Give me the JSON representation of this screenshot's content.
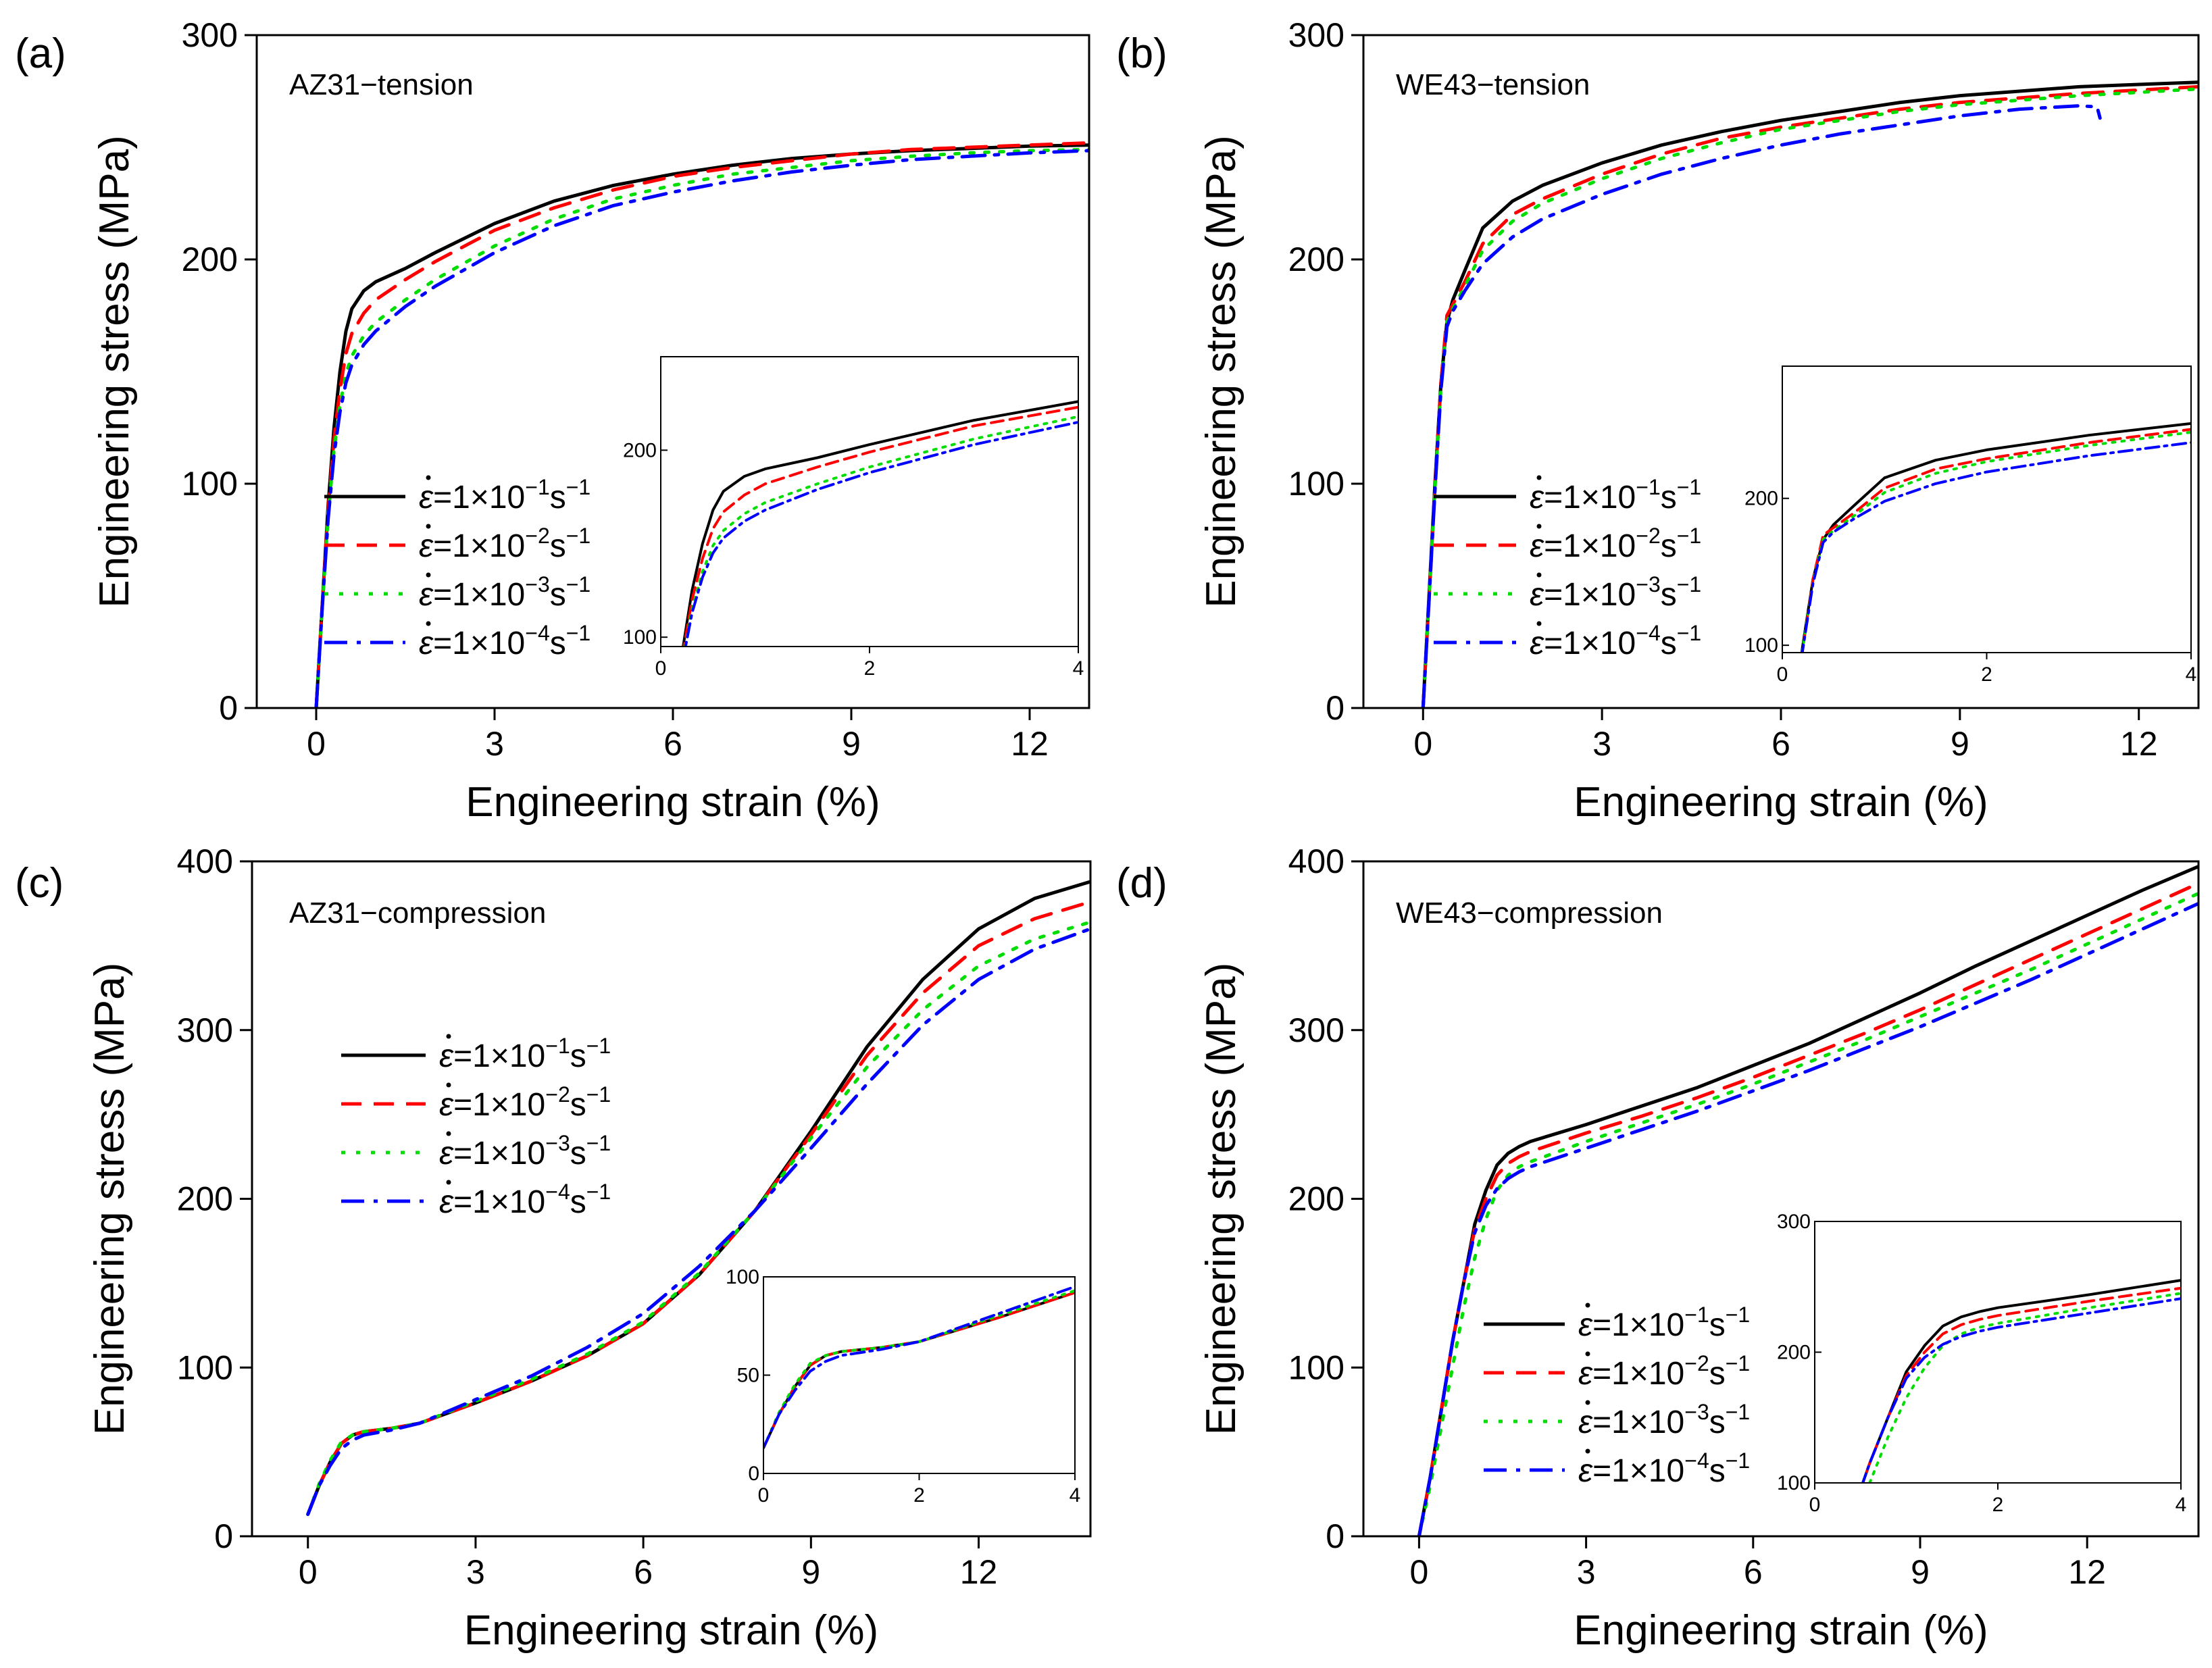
{
  "colors": {
    "s1": "#000000",
    "s2": "#ff0000",
    "s3": "#00dd00",
    "s4": "#0000ff"
  },
  "legend_entries": [
    {
      "mantissa": "1",
      "exponent": "−1",
      "unit": "s",
      "unit_exp": "−1"
    },
    {
      "mantissa": "1",
      "exponent": "−2",
      "unit": "s",
      "unit_exp": "−1"
    },
    {
      "mantissa": "1",
      "exponent": "−3",
      "unit": "s",
      "unit_exp": "−1"
    },
    {
      "mantissa": "1",
      "exponent": "−4",
      "unit": "s",
      "unit_exp": "−1"
    }
  ],
  "legend_symbol": "ε",
  "legend_times": "=1×10",
  "chart_data": [
    {
      "type": "line",
      "panel": "(a)",
      "title": "AZ31−tension",
      "xlabel": "Engineering strain (%)",
      "ylabel": "Engineering stress (MPa)",
      "xlim": [
        -1,
        13
      ],
      "ylim": [
        0,
        300
      ],
      "xticks": [
        0,
        3,
        6,
        9,
        12
      ],
      "yticks": [
        0,
        100,
        200,
        300
      ],
      "series": [
        {
          "name": "1×10⁻¹ s⁻¹",
          "x": [
            0,
            0.1,
            0.2,
            0.3,
            0.4,
            0.5,
            0.6,
            0.8,
            1.0,
            1.5,
            2,
            3,
            4,
            5,
            6,
            7,
            8,
            9,
            10,
            11,
            12,
            13
          ],
          "y": [
            0,
            45,
            90,
            125,
            150,
            168,
            178,
            186,
            190,
            196,
            203,
            216,
            226,
            233,
            238,
            242,
            245,
            247,
            248.5,
            249.5,
            250.5,
            251
          ]
        },
        {
          "name": "1×10⁻² s⁻¹",
          "x": [
            0,
            0.1,
            0.2,
            0.3,
            0.4,
            0.5,
            0.6,
            0.8,
            1.0,
            1.5,
            2,
            3,
            4,
            5,
            6,
            7,
            8,
            9,
            10,
            11,
            12,
            13
          ],
          "y": [
            0,
            45,
            88,
            120,
            142,
            158,
            167,
            176,
            182,
            191,
            199,
            213,
            223,
            231,
            237,
            241,
            244,
            247,
            249,
            250,
            251,
            252
          ]
        },
        {
          "name": "1×10⁻³ s⁻¹",
          "x": [
            0,
            0.1,
            0.2,
            0.3,
            0.4,
            0.5,
            0.6,
            0.8,
            1.0,
            1.5,
            2,
            3,
            4,
            5,
            6,
            7,
            8,
            9,
            10,
            11,
            12,
            13
          ],
          "y": [
            0,
            44,
            85,
            115,
            135,
            149,
            157,
            166,
            172,
            182,
            191,
            206,
            218,
            227,
            233,
            238,
            241,
            244,
            246,
            247.5,
            248.5,
            249
          ]
        },
        {
          "name": "1×10⁻⁴ s⁻¹",
          "x": [
            0,
            0.1,
            0.2,
            0.3,
            0.4,
            0.5,
            0.6,
            0.8,
            1.0,
            1.5,
            2,
            3,
            4,
            5,
            6,
            7,
            8,
            9,
            10,
            11,
            12,
            13
          ],
          "y": [
            0,
            44,
            84,
            113,
            132,
            145,
            153,
            162,
            168,
            179,
            188,
            203,
            215,
            224,
            230,
            235,
            239,
            242,
            244.5,
            246,
            247.5,
            248.5
          ]
        }
      ],
      "inset": {
        "xlim": [
          0,
          4
        ],
        "ylim": [
          95,
          250
        ],
        "xticks": [
          0,
          2,
          4
        ],
        "yticks": [
          100,
          200
        ]
      }
    },
    {
      "type": "line",
      "panel": "(b)",
      "title": "WE43−tension",
      "xlabel": "Engineering strain (%)",
      "ylabel": "Engineering stress (MPa)",
      "xlim": [
        -1,
        13
      ],
      "ylim": [
        0,
        300
      ],
      "xticks": [
        0,
        3,
        6,
        9,
        12
      ],
      "yticks": [
        0,
        100,
        200,
        300
      ],
      "series": [
        {
          "name": "1×10⁻¹ s⁻¹",
          "x": [
            0,
            0.1,
            0.2,
            0.3,
            0.4,
            0.5,
            0.7,
            1.0,
            1.5,
            2,
            3,
            4,
            5,
            6,
            7,
            8,
            9,
            10,
            11,
            12,
            13
          ],
          "y": [
            0,
            50,
            100,
            145,
            172,
            182,
            195,
            214,
            226,
            233,
            243,
            251,
            257,
            262,
            266,
            270,
            273,
            275,
            277,
            278,
            279
          ]
        },
        {
          "name": "1×10⁻² s⁻¹",
          "x": [
            0,
            0.1,
            0.2,
            0.3,
            0.4,
            0.5,
            0.7,
            1.0,
            1.5,
            2,
            3,
            4,
            5,
            6,
            7,
            8,
            9,
            10,
            11,
            12,
            13
          ],
          "y": [
            0,
            48,
            98,
            145,
            175,
            180,
            190,
            207,
            220,
            227,
            238,
            247,
            254,
            259,
            263,
            267,
            270,
            272,
            274,
            275.5,
            277
          ]
        },
        {
          "name": "1×10⁻³ s⁻¹",
          "x": [
            0,
            0.1,
            0.2,
            0.3,
            0.4,
            0.5,
            0.7,
            1.0,
            1.5,
            2,
            3,
            4,
            5,
            6,
            7,
            8,
            9,
            10,
            11,
            12,
            13
          ],
          "y": [
            0,
            48,
            98,
            143,
            172,
            178,
            188,
            204,
            217,
            225,
            236,
            245,
            252,
            258,
            262,
            266,
            269,
            271,
            273,
            274.5,
            276
          ]
        },
        {
          "name": "1×10⁻⁴ s⁻¹",
          "x": [
            0,
            0.1,
            0.2,
            0.3,
            0.4,
            0.5,
            0.7,
            1.0,
            1.5,
            2,
            3,
            4,
            5,
            6,
            7,
            8,
            9,
            10,
            11,
            11.3,
            11.35
          ],
          "y": [
            0,
            48,
            97,
            142,
            170,
            177,
            186,
            198,
            210,
            218,
            229,
            238,
            245,
            251,
            256,
            260,
            264,
            267,
            268.5,
            268,
            263
          ]
        }
      ],
      "inset": {
        "xlim": [
          0,
          4
        ],
        "ylim": [
          95,
          290
        ],
        "xticks": [
          0,
          2,
          4
        ],
        "yticks": [
          100,
          200
        ]
      }
    },
    {
      "type": "line",
      "panel": "(c)",
      "title": "AZ31−compression",
      "xlabel": "Engineering strain (%)",
      "ylabel": "Engineering stress (MPa)",
      "xlim": [
        -1,
        14
      ],
      "ylim": [
        0,
        400
      ],
      "xticks": [
        0,
        3,
        6,
        9,
        12
      ],
      "yticks": [
        0,
        100,
        200,
        300,
        400
      ],
      "series": [
        {
          "name": "1×10⁻¹ s⁻¹",
          "x": [
            0,
            0.2,
            0.4,
            0.6,
            0.8,
            1.0,
            1.5,
            2,
            3,
            4,
            5,
            6,
            7,
            8,
            9,
            10,
            11,
            12,
            13,
            14
          ],
          "y": [
            13,
            30,
            44,
            55,
            60,
            62,
            64,
            67,
            79,
            92,
            107,
            126,
            155,
            193,
            240,
            290,
            330,
            360,
            378,
            388
          ]
        },
        {
          "name": "1×10⁻² s⁻¹",
          "x": [
            0,
            0.2,
            0.4,
            0.6,
            0.8,
            1.0,
            1.5,
            2,
            3,
            4,
            5,
            6,
            7,
            8,
            9,
            10,
            11,
            12,
            13,
            14
          ],
          "y": [
            13,
            30,
            44,
            55,
            60,
            62,
            64,
            67,
            79,
            92,
            107,
            126,
            155,
            193,
            238,
            285,
            322,
            350,
            366,
            376
          ]
        },
        {
          "name": "1×10⁻³ s⁻¹",
          "x": [
            0,
            0.2,
            0.4,
            0.6,
            0.8,
            1.0,
            1.5,
            2,
            3,
            4,
            5,
            6,
            7,
            8,
            9,
            10,
            11,
            12,
            13,
            14
          ],
          "y": [
            13,
            31,
            45,
            56,
            60,
            62,
            64,
            67,
            80,
            93,
            108,
            127,
            156,
            193,
            236,
            278,
            312,
            338,
            354,
            364
          ]
        },
        {
          "name": "1×10⁻⁴ s⁻¹",
          "x": [
            0,
            0.2,
            0.4,
            0.6,
            0.8,
            1.0,
            1.5,
            2,
            3,
            4,
            5,
            6,
            7,
            8,
            9,
            10,
            11,
            12,
            13,
            14
          ],
          "y": [
            13,
            30,
            42,
            52,
            57,
            60,
            63,
            67,
            81,
            95,
            112,
            132,
            160,
            193,
            230,
            268,
            303,
            330,
            348,
            360
          ]
        }
      ],
      "inset": {
        "xlim": [
          0,
          4
        ],
        "ylim": [
          0,
          100
        ],
        "xticks": [
          0,
          2,
          4
        ],
        "yticks": [
          0,
          50,
          100
        ]
      }
    },
    {
      "type": "line",
      "panel": "(d)",
      "title": "WE43−compression",
      "xlabel": "Engineering strain (%)",
      "ylabel": "Engineering stress (MPa)",
      "xlim": [
        -1,
        14
      ],
      "ylim": [
        0,
        400
      ],
      "xticks": [
        0,
        3,
        6,
        9,
        12
      ],
      "yticks": [
        0,
        100,
        200,
        300,
        400
      ],
      "series": [
        {
          "name": "1×10⁻¹ s⁻¹",
          "x": [
            0,
            0.2,
            0.4,
            0.6,
            0.8,
            1.0,
            1.2,
            1.4,
            1.6,
            1.8,
            2,
            3,
            4,
            5,
            6,
            7,
            8,
            9,
            10,
            11,
            12,
            13,
            14
          ],
          "y": [
            0,
            35,
            75,
            115,
            150,
            185,
            205,
            220,
            227,
            231,
            234,
            244,
            255,
            266,
            279,
            292,
            307,
            322,
            338,
            353,
            368,
            383,
            397
          ]
        },
        {
          "name": "1×10⁻² s⁻¹",
          "x": [
            0,
            0.2,
            0.4,
            0.6,
            0.8,
            1.0,
            1.2,
            1.4,
            1.6,
            1.8,
            2,
            3,
            4,
            5,
            6,
            7,
            8,
            9,
            10,
            11,
            12,
            13,
            14
          ],
          "y": [
            0,
            35,
            75,
            115,
            150,
            182,
            200,
            214,
            221,
            225,
            228,
            239,
            249,
            260,
            272,
            285,
            298,
            312,
            327,
            342,
            357,
            372,
            387
          ]
        },
        {
          "name": "1×10⁻³ s⁻¹",
          "x": [
            0,
            0.2,
            0.4,
            0.6,
            0.8,
            1.0,
            1.2,
            1.4,
            1.6,
            1.8,
            2,
            3,
            4,
            5,
            6,
            7,
            8,
            9,
            10,
            11,
            12,
            13,
            14
          ],
          "y": [
            0,
            30,
            65,
            100,
            135,
            165,
            188,
            205,
            214,
            219,
            222,
            234,
            245,
            256,
            268,
            281,
            294,
            308,
            322,
            336,
            351,
            366,
            381
          ]
        },
        {
          "name": "1×10⁻⁴ s⁻¹",
          "x": [
            0,
            0.2,
            0.4,
            0.6,
            0.8,
            1.0,
            1.2,
            1.4,
            1.6,
            1.8,
            2,
            3,
            4,
            5,
            6,
            7,
            8,
            9,
            10,
            11,
            12,
            13,
            14
          ],
          "y": [
            0,
            35,
            75,
            115,
            150,
            180,
            196,
            206,
            212,
            216,
            219,
            230,
            241,
            252,
            264,
            276,
            289,
            302,
            316,
            330,
            345,
            360,
            375
          ]
        }
      ],
      "inset": {
        "xlim": [
          0,
          4
        ],
        "ylim": [
          100,
          300
        ],
        "xticks": [
          0,
          2,
          4
        ],
        "yticks": [
          100,
          200,
          300
        ]
      }
    }
  ]
}
